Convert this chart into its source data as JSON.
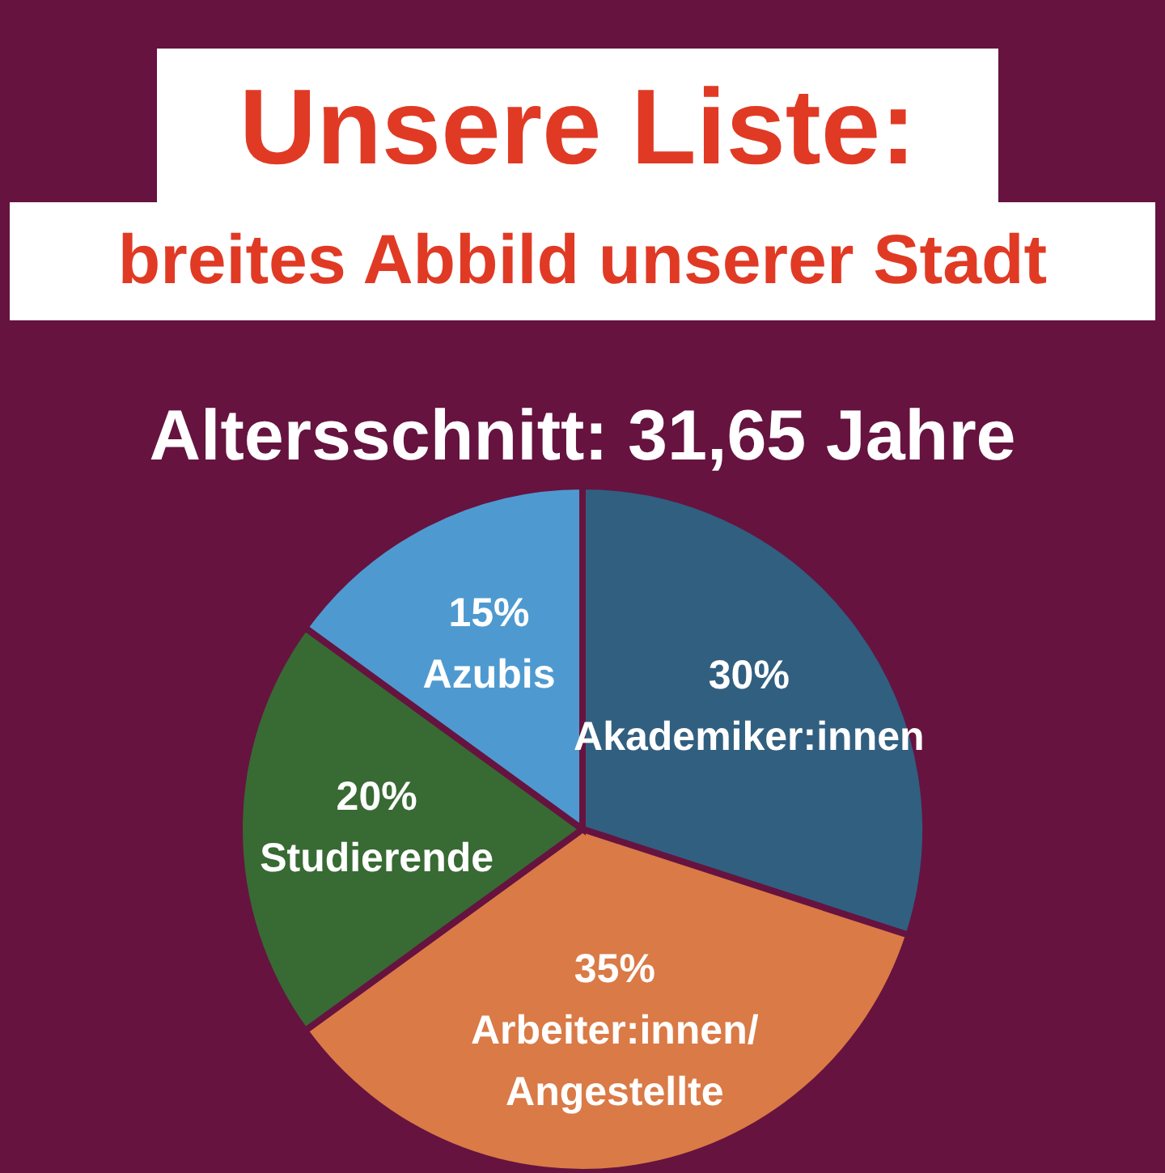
{
  "chart_data": {
    "type": "pie",
    "title": "Unsere Liste:",
    "subtitle": "breites Abbild unserer Stadt",
    "annotations": [
      "Altersschnitt: 31,65 Jahre"
    ],
    "categories": [
      "Akademiker:innen",
      "Arbeiter:innen/Angestellte",
      "Studierende",
      "Azubis"
    ],
    "values": [
      30,
      35,
      20,
      15
    ],
    "colors": [
      "#315f80",
      "#da7a46",
      "#386a33",
      "#4e9ad0"
    ],
    "value_labels": [
      "30%",
      "35%",
      "20%",
      "15%"
    ]
  }
}
